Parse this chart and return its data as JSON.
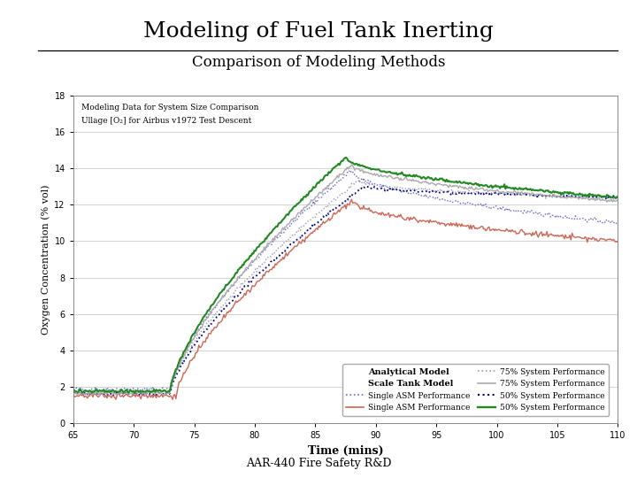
{
  "title_main": "Modeling of Fuel Tank Inerting",
  "subtitle": "Comparison of Modeling Methods",
  "annotation_line1": "Modeling Data for System Size Comparison",
  "annotation_line2": "Ullage [O₂] for Airbus v1972 Test Descent",
  "xlabel": "Time (mins)",
  "ylabel": "Oxygen Concentration (% vol)",
  "footer": "AAR-440 Fire Safety R&D",
  "xlim": [
    65,
    110
  ],
  "ylim": [
    0,
    18
  ],
  "xticks": [
    65,
    70,
    75,
    80,
    85,
    90,
    95,
    100,
    105,
    110
  ],
  "yticks": [
    0,
    2,
    4,
    6,
    8,
    10,
    12,
    14,
    16,
    18
  ],
  "legend_col1_title": "Analytical Model",
  "legend_col2_title": "Scale Tank Model",
  "background_color": "#ffffff",
  "plot_bg_color": "#ffffff",
  "grid_color": "#cccccc",
  "c_anal_single": "#6666cc",
  "c_anal_75": "#9999bb",
  "c_anal_50": "#000088",
  "c_scale_single": "#cc6655",
  "c_scale_75": "#aaaaaa",
  "c_scale_50": "#228822"
}
